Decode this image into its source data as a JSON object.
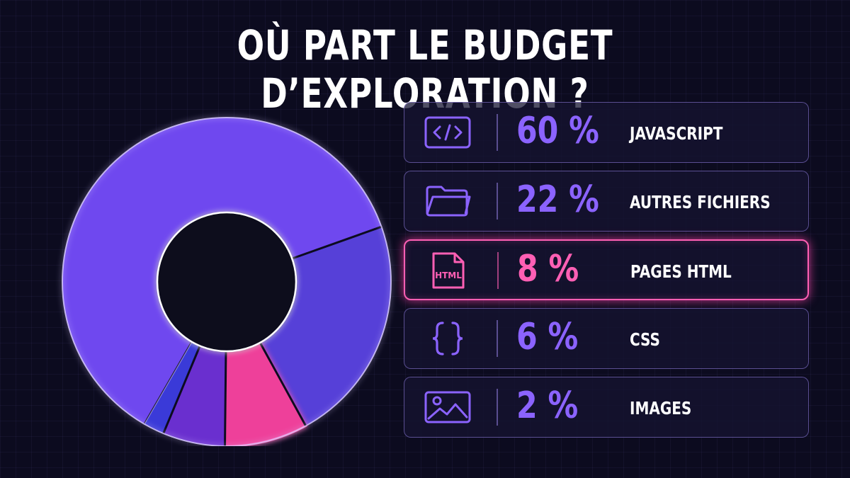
{
  "title": "OÙ PART LE BUDGET D’EXPLORATION ?",
  "colors": {
    "javascript": "#6f48ef",
    "autres_fichiers": "#5640d8",
    "pages_html": "#ee3f9a",
    "css": "#6a2fcf",
    "images": "#3a3ad8",
    "highlight": "#ff5fb4",
    "accent": "#8b63ff"
  },
  "chart_data": {
    "type": "pie",
    "title": "OÙ PART LE BUDGET D’EXPLORATION ?",
    "categories": [
      "JAVASCRIPT",
      "AUTRES FICHIERS",
      "PAGES HTML",
      "CSS",
      "IMAGES"
    ],
    "values": [
      60,
      22,
      8,
      6,
      2
    ],
    "value_labels": [
      "60 %",
      "22 %",
      "8 %",
      "6 %",
      "2 %"
    ],
    "highlighted": "PAGES HTML",
    "legend_position": "right"
  },
  "legend": [
    {
      "pct": "60 %",
      "label": "JAVASCRIPT",
      "icon": "code-icon"
    },
    {
      "pct": "22 %",
      "label": "AUTRES FICHIERS",
      "icon": "folder-icon"
    },
    {
      "pct": "8 %",
      "label": "PAGES HTML",
      "icon": "html-file-icon",
      "icon_text": "HTML"
    },
    {
      "pct": "6 %",
      "label": "CSS",
      "icon": "braces-icon"
    },
    {
      "pct": "2 %",
      "label": "IMAGES",
      "icon": "image-icon"
    }
  ]
}
